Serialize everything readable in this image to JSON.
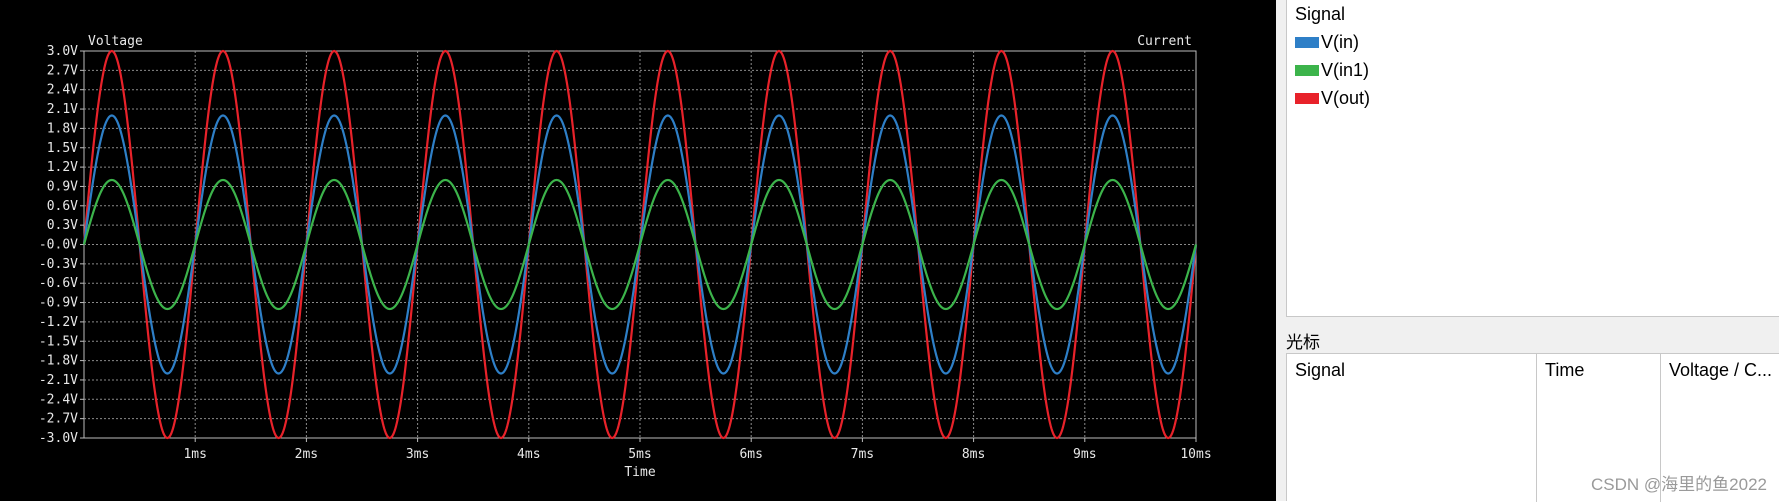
{
  "chart_data": {
    "type": "line",
    "left_axis_label": "Voltage",
    "right_axis_label": "Current",
    "xlabel": "Time",
    "xlim_ms": [
      0,
      10
    ],
    "ylim": [
      -3.0,
      3.0
    ],
    "grid": true,
    "x_ticks": [
      "1ms",
      "2ms",
      "3ms",
      "4ms",
      "5ms",
      "6ms",
      "7ms",
      "8ms",
      "9ms",
      "10ms"
    ],
    "y_ticks": [
      "3.0V",
      "2.7V",
      "2.4V",
      "2.1V",
      "1.8V",
      "1.5V",
      "1.2V",
      "0.9V",
      "0.6V",
      "0.3V",
      "-0.0V",
      "-0.3V",
      "-0.6V",
      "-0.9V",
      "-1.2V",
      "-1.5V",
      "-1.8V",
      "-2.1V",
      "-2.4V",
      "-2.7V",
      "-3.0V"
    ],
    "series": [
      {
        "name": "V(in)",
        "color": "#2e7fc7",
        "waveform": "sine",
        "amplitude": 2.0,
        "frequency_hz": 1000
      },
      {
        "name": "V(in1)",
        "color": "#3cb44b",
        "waveform": "sine",
        "amplitude": 1.0,
        "frequency_hz": 1000
      },
      {
        "name": "V(out)",
        "color": "#e8222a",
        "waveform": "sine",
        "amplitude": 3.0,
        "frequency_hz": 1000
      }
    ]
  },
  "signal_panel": {
    "header": "Signal"
  },
  "cursor_panel": {
    "title": "光标",
    "columns": [
      "Signal",
      "Time",
      "Voltage / C..."
    ]
  },
  "watermark": "CSDN @海里的鱼2022"
}
